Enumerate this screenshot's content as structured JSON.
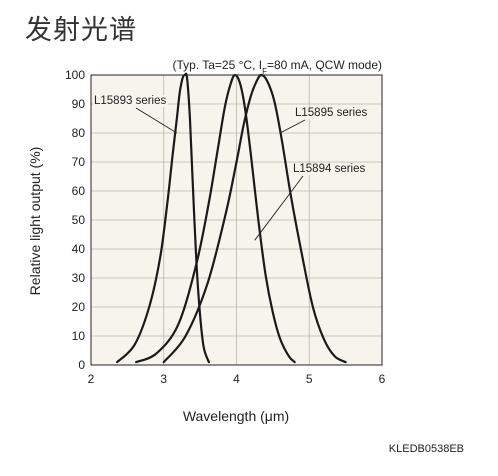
{
  "page_title": "发射光谱",
  "chart_data": {
    "type": "line",
    "title": "发射光谱",
    "condition": "(Typ. Ta=25 °C, IF=80 mA, QCW mode)",
    "condition_parts": {
      "pre": "(Typ. Ta=25 °C, I",
      "sub": "F",
      "post": "=80 mA, QCW mode)"
    },
    "xlabel": "Wavelength (μm)",
    "ylabel": "Relative light output (%)",
    "xlim": [
      2,
      6
    ],
    "ylim": [
      0,
      100
    ],
    "xticks": [
      2,
      3,
      4,
      5,
      6
    ],
    "yticks": [
      0,
      10,
      20,
      30,
      40,
      50,
      60,
      70,
      80,
      90,
      100
    ],
    "grid": true,
    "figure_code": "KLEDB0538EB",
    "series": [
      {
        "name": "L15893 series",
        "x": [
          2.36,
          2.6,
          2.8,
          2.95,
          3.05,
          3.12,
          3.18,
          3.22,
          3.26,
          3.29,
          3.32,
          3.36,
          3.4,
          3.45,
          3.5,
          3.55,
          3.62
        ],
        "y": [
          1,
          7,
          20,
          37,
          56,
          72,
          85,
          94,
          99,
          100,
          99,
          85,
          62,
          35,
          17,
          6,
          1
        ]
      },
      {
        "name": "L15895 series",
        "x": [
          2.62,
          2.9,
          3.2,
          3.45,
          3.62,
          3.74,
          3.84,
          3.92,
          3.98,
          4.05,
          4.12,
          4.2,
          4.3,
          4.4,
          4.5,
          4.6,
          4.72,
          4.8
        ],
        "y": [
          1,
          4,
          14,
          35,
          56,
          74,
          89,
          97,
          100,
          97,
          88,
          72,
          50,
          31,
          18,
          9,
          3,
          1
        ]
      },
      {
        "name": "L15894 series",
        "x": [
          3.0,
          3.3,
          3.6,
          3.85,
          4.0,
          4.1,
          4.2,
          4.28,
          4.34,
          4.42,
          4.52,
          4.62,
          4.75,
          4.9,
          5.05,
          5.2,
          5.35,
          5.5
        ],
        "y": [
          1,
          10,
          28,
          52,
          70,
          83,
          93,
          98,
          100,
          98,
          91,
          78,
          58,
          38,
          20,
          9,
          3,
          1
        ]
      }
    ],
    "annotations": [
      {
        "series": 0,
        "text": "L15893 series",
        "at": [
          3.18,
          80
        ]
      },
      {
        "series": 1,
        "text": "L15895 series",
        "at": [
          4.6,
          80
        ]
      },
      {
        "series": 2,
        "text": "L15894 series",
        "at": [
          4.25,
          43
        ]
      }
    ]
  }
}
